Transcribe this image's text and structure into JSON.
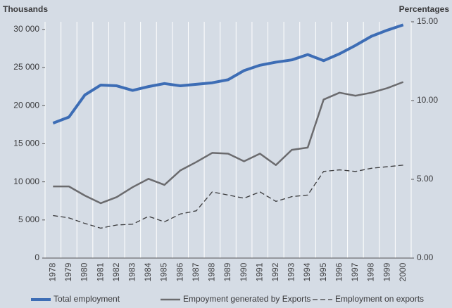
{
  "chart_data": {
    "type": "line",
    "y_label": "Thousands",
    "y2_label": "Percentages",
    "categories": [
      "1978",
      "1979",
      "1980",
      "1981",
      "1982",
      "1983",
      "1984",
      "1985",
      "1986",
      "1987",
      "1988",
      "1989",
      "1990",
      "1991",
      "1992",
      "1993",
      "1994",
      "1995",
      "1996",
      "1997",
      "1998",
      "1999",
      "2000"
    ],
    "series": [
      {
        "name": "Total employment",
        "color": "#3d6db5",
        "width": 4,
        "dash": false,
        "values": [
          17700,
          18500,
          21400,
          22700,
          22600,
          22000,
          22500,
          22900,
          22600,
          22800,
          23000,
          23400,
          24600,
          25300,
          25700,
          26000,
          26700,
          25900,
          26800,
          27900,
          29100,
          29900,
          30600
        ]
      },
      {
        "name": "Empoyment generated by Exports",
        "color": "#6b6b6e",
        "width": 2.5,
        "dash": false,
        "values": [
          9400,
          9400,
          8200,
          7200,
          8000,
          9300,
          10400,
          9600,
          11500,
          12600,
          13800,
          13700,
          12700,
          13700,
          12200,
          14200,
          14500,
          20800,
          21700,
          21300,
          21700,
          22300,
          23100
        ]
      },
      {
        "name": "Employment on exports",
        "color": "#3a3a3c",
        "width": 1.3,
        "dash": true,
        "axis": "y2",
        "values": [
          2.7,
          2.55,
          2.2,
          1.9,
          2.1,
          2.15,
          2.65,
          2.3,
          2.8,
          3.0,
          4.2,
          4.0,
          3.8,
          4.2,
          3.6,
          3.9,
          4.0,
          5.5,
          5.6,
          5.5,
          5.7,
          5.8,
          5.9
        ]
      }
    ],
    "ylim": [
      0,
      31000
    ],
    "yticks": [
      0,
      {
        "value": 5000,
        "label": "5 000"
      },
      {
        "value": 10000,
        "label": "10 000"
      },
      {
        "value": 15000,
        "label": "15 000"
      },
      {
        "value": 20000,
        "label": "20 000"
      },
      {
        "value": 25000,
        "label": "25 000"
      },
      {
        "value": 30000,
        "label": "30 000"
      }
    ],
    "y2lim": [
      0,
      15
    ],
    "y2ticks": [
      {
        "value": 0,
        "label": "0.00"
      },
      {
        "value": 5,
        "label": "5.00"
      },
      {
        "value": 10,
        "label": "10.00"
      },
      {
        "value": 15,
        "label": "15.00"
      }
    ],
    "grid": true
  }
}
